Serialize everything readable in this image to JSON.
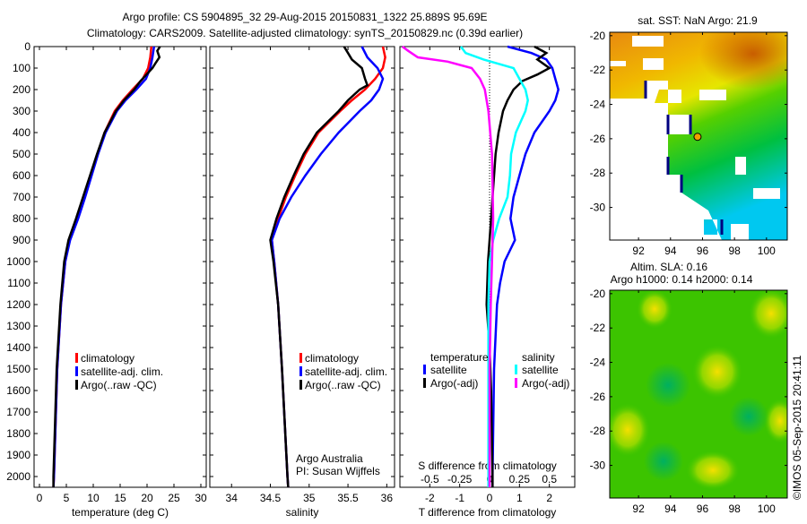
{
  "title_lines": [
    "Argo profile: CS 5904895_32 29-Aug-2015 20150831_1322 25.889S 95.69E",
    "Climatology: CARS2009. Satellite-adjusted climatology: synTS_20150829.nc (0.39d earlier)"
  ],
  "footer_stamp": "©IMOS 05-Sep-2015 20:41:11",
  "colors": {
    "climatology": "#ff0000",
    "satellite": "#0000ff",
    "argo": "#000000",
    "sal_satellite": "#00ffff",
    "sal_argo": "#ff00ff"
  },
  "chart_data": [
    {
      "type": "line",
      "id": "temperature",
      "xlabel": "temperature (deg C)",
      "ylabel": "",
      "xlim": [
        -1,
        31
      ],
      "ylim": [
        2050,
        0
      ],
      "xticks": [
        0,
        5,
        10,
        15,
        20,
        25,
        30
      ],
      "yticks": [
        0,
        100,
        200,
        300,
        400,
        500,
        600,
        700,
        800,
        900,
        1000,
        1100,
        1200,
        1300,
        1400,
        1500,
        1600,
        1700,
        1800,
        1900,
        2000
      ],
      "legend": {
        "placement": "lower-center",
        "entries": [
          "climatology",
          "satellite-adj. clim.",
          "Argo(..raw -QC)"
        ]
      },
      "series": [
        {
          "name": "climatology",
          "color": "#ff0000",
          "depth": [
            0,
            50,
            100,
            150,
            200,
            250,
            300,
            400,
            500,
            600,
            700,
            800,
            900,
            1000,
            1200,
            1500,
            2000,
            2050
          ],
          "values": [
            20.8,
            20.6,
            20.2,
            19.2,
            17.3,
            15.5,
            14.0,
            12.1,
            10.8,
            9.6,
            8.4,
            7.1,
            5.6,
            4.8,
            4.0,
            3.3,
            2.7,
            2.6
          ]
        },
        {
          "name": "satellite-adj. clim.",
          "color": "#0000ff",
          "depth": [
            0,
            50,
            100,
            150,
            200,
            250,
            300,
            400,
            500,
            600,
            700,
            800,
            900,
            1000,
            1200,
            1500,
            2000,
            2050
          ],
          "values": [
            21.3,
            21.0,
            20.6,
            19.8,
            18.0,
            16.0,
            14.4,
            12.3,
            10.9,
            9.7,
            8.5,
            7.2,
            5.7,
            4.8,
            4.0,
            3.3,
            2.7,
            2.6
          ]
        },
        {
          "name": "Argo(..raw -QC)",
          "color": "#000000",
          "depth": [
            0,
            20,
            50,
            80,
            100,
            130,
            160,
            200,
            250,
            300,
            400,
            500,
            600,
            700,
            800,
            900,
            1000,
            1200,
            1500,
            2000,
            2050
          ],
          "values": [
            22.4,
            21.9,
            22.3,
            21.5,
            21.0,
            19.9,
            18.8,
            17.6,
            15.7,
            14.2,
            12.1,
            10.7,
            9.4,
            8.1,
            6.8,
            5.4,
            4.6,
            3.9,
            3.2,
            2.6,
            2.6
          ]
        }
      ]
    },
    {
      "type": "line",
      "id": "salinity",
      "xlabel": "salinity",
      "ylabel": "",
      "xlim": [
        33.72,
        36.1
      ],
      "ylim": [
        2050,
        0
      ],
      "xticks": [
        34,
        34.5,
        35,
        35.5,
        36
      ],
      "legend": {
        "placement": "center-right",
        "entries": [
          "climatology",
          "satellite-adj. clim.",
          "Argo(..raw -QC)"
        ]
      },
      "annotation": [
        "Argo Australia",
        "PI: Susan Wijffels"
      ],
      "series": [
        {
          "name": "climatology",
          "color": "#ff0000",
          "depth": [
            0,
            50,
            100,
            150,
            200,
            250,
            300,
            400,
            500,
            600,
            700,
            800,
            900,
            1000,
            1200,
            1500,
            2000,
            2050
          ],
          "values": [
            35.95,
            35.98,
            35.95,
            35.85,
            35.72,
            35.55,
            35.4,
            35.12,
            34.95,
            34.82,
            34.7,
            34.6,
            34.52,
            34.55,
            34.6,
            34.65,
            34.72,
            34.73
          ]
        },
        {
          "name": "satellite-adj. clim.",
          "color": "#0000ff",
          "depth": [
            0,
            50,
            100,
            150,
            200,
            250,
            300,
            400,
            500,
            600,
            700,
            800,
            900,
            1000,
            1200,
            1500,
            2000,
            2050
          ],
          "values": [
            35.68,
            35.75,
            35.88,
            35.95,
            35.9,
            35.8,
            35.65,
            35.38,
            35.15,
            34.95,
            34.77,
            34.62,
            34.52,
            34.55,
            34.6,
            34.65,
            34.72,
            34.73
          ]
        },
        {
          "name": "Argo(..raw -QC)",
          "color": "#000000",
          "depth": [
            0,
            30,
            60,
            100,
            150,
            180,
            200,
            250,
            300,
            400,
            500,
            600,
            700,
            800,
            900,
            1000,
            1200,
            1500,
            2000,
            2050
          ],
          "values": [
            35.45,
            35.5,
            35.55,
            35.68,
            35.72,
            35.75,
            35.65,
            35.5,
            35.38,
            35.1,
            34.93,
            34.8,
            34.68,
            34.58,
            34.5,
            34.54,
            34.6,
            34.65,
            34.72,
            34.73
          ]
        }
      ]
    },
    {
      "type": "line",
      "id": "differences",
      "xlabel": "T difference from climatology",
      "xlabel_top": "S difference from climatology",
      "xlim": [
        -3,
        2.85
      ],
      "ylim": [
        2050,
        0
      ],
      "xticks": [
        -2,
        -1,
        0,
        1,
        2
      ],
      "xticks_top": [
        -0.5,
        -0.25,
        0,
        0.25,
        0.5
      ],
      "xtick_top_labels": [
        "-0.5",
        "-0.25",
        "0",
        "0.25",
        "0.5"
      ],
      "legend": {
        "placement": "center",
        "groups": [
          {
            "title": "temperature",
            "entries": [
              "satellite",
              "Argo(-adj)"
            ]
          },
          {
            "title": "salinity",
            "entries": [
              "satellite",
              "Argo(-adj)"
            ]
          }
        ]
      },
      "series": [
        {
          "name": "temperature satellite",
          "quantity": "T",
          "color": "#0000ff",
          "depth": [
            0,
            30,
            60,
            100,
            150,
            200,
            250,
            300,
            400,
            500,
            600,
            700,
            800,
            900,
            1000,
            1100,
            1200,
            1500,
            2000,
            2050
          ],
          "values": [
            0.6,
            1.4,
            1.9,
            2.1,
            2.2,
            2.3,
            2.2,
            2.0,
            1.5,
            1.2,
            1.0,
            0.8,
            0.7,
            0.85,
            0.5,
            0.35,
            0.25,
            0.15,
            0.1,
            0.1
          ]
        },
        {
          "name": "temperature Argo(-adj)",
          "quantity": "T",
          "color": "#000000",
          "depth": [
            0,
            30,
            60,
            100,
            130,
            160,
            200,
            250,
            300,
            400,
            500,
            600,
            700,
            800,
            900,
            1000,
            1200,
            1400,
            1600,
            2000,
            2050
          ],
          "values": [
            1.5,
            1.9,
            1.6,
            2.0,
            1.6,
            1.1,
            0.8,
            0.6,
            0.45,
            0.3,
            0.2,
            0.15,
            0.1,
            0.05,
            0.0,
            -0.05,
            -0.1,
            0.0,
            0.05,
            0.1,
            0.1
          ]
        },
        {
          "name": "salinity satellite",
          "quantity": "S",
          "color": "#00ffff",
          "depth": [
            0,
            30,
            60,
            100,
            150,
            200,
            250,
            300,
            400,
            500,
            600,
            700,
            800,
            900,
            1000,
            1200,
            1500,
            2000,
            2050
          ],
          "values": [
            -0.24,
            -0.2,
            -0.05,
            0.2,
            0.25,
            0.3,
            0.32,
            0.3,
            0.22,
            0.18,
            0.17,
            0.15,
            0.08,
            0.03,
            0.0,
            -0.01,
            -0.01,
            -0.01,
            -0.01
          ]
        },
        {
          "name": "salinity Argo(-adj)",
          "quantity": "S",
          "color": "#ff00ff",
          "depth": [
            0,
            20,
            50,
            70,
            100,
            150,
            200,
            300,
            500,
            800,
            1000,
            1200,
            1500,
            2000,
            2050
          ],
          "values": [
            -0.73,
            -0.68,
            -0.6,
            -0.35,
            -0.15,
            -0.08,
            -0.04,
            -0.01,
            0.02,
            0.03,
            0.02,
            0.01,
            0.0,
            0.0,
            0.0
          ]
        }
      ]
    },
    {
      "type": "heatmap",
      "id": "sst-map",
      "title": "sat. SST: NaN Argo: 21.9",
      "xlim": [
        90.2,
        101.3
      ],
      "ylim": [
        -31.9,
        -19.8
      ],
      "xticks": [
        92,
        94,
        96,
        98,
        100
      ],
      "yticks": [
        -20,
        -22,
        -24,
        -26,
        -28,
        -30
      ],
      "argo_position": {
        "lon": 95.69,
        "lat": -25.889
      }
    },
    {
      "type": "heatmap",
      "id": "sla-map",
      "title_lines": [
        "Altim. SLA: 0.16",
        "Argo h1000: 0.14 h2000: 0.14"
      ],
      "xlim": [
        90.2,
        101.3
      ],
      "ylim": [
        -31.9,
        -19.8
      ],
      "xticks": [
        92,
        94,
        96,
        98,
        100
      ],
      "yticks": [
        -20,
        -22,
        -24,
        -26,
        -28,
        -30
      ]
    }
  ]
}
